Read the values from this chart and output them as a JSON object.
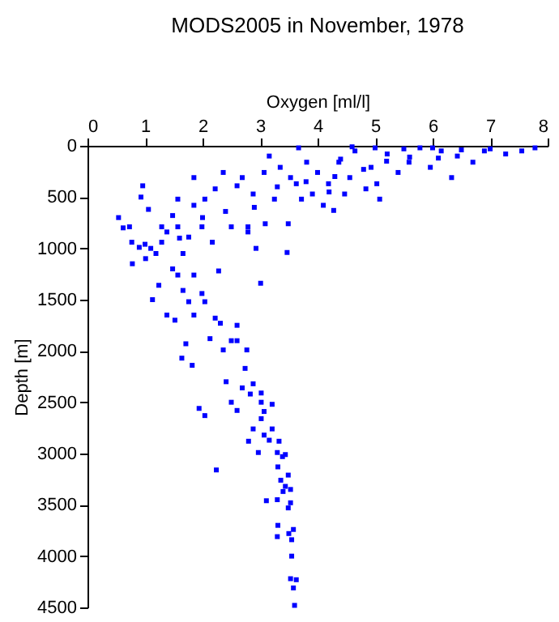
{
  "chart_data": {
    "type": "scatter",
    "title": "MODS2005 in November, 1978",
    "xlabel": "Oxygen [ml/l]",
    "ylabel": "Depth [m]",
    "xlim": [
      0,
      8
    ],
    "xticks": [
      0,
      1,
      2,
      3,
      4,
      5,
      6,
      7,
      8
    ],
    "ylim": [
      4500,
      0
    ],
    "yticks": [
      0,
      500,
      1000,
      1500,
      2000,
      2500,
      3000,
      3500,
      4000,
      4500
    ],
    "grid": false,
    "marker": "square",
    "series": [
      {
        "color": "#0000ff",
        "x": [
          7.78,
          7.55,
          7.27,
          6.9,
          6.7,
          6.43,
          6.33,
          6.15,
          5.96,
          5.78,
          5.59,
          5.4,
          5.21,
          5.03,
          5.08,
          4.93,
          4.84,
          4.65,
          4.56,
          4.47,
          4.37,
          4.28,
          4.19,
          4.1,
          4.0,
          3.91,
          3.81,
          3.72,
          3.67,
          3.63,
          3.53,
          3.49,
          3.47,
          3.35,
          3.25,
          3.16,
          3.09,
          3.07,
          3.01,
          2.93,
          2.88,
          2.79,
          2.79,
          2.69,
          2.6,
          2.5,
          2.36,
          2.28,
          2.22,
          2.17,
          2.04,
          1.99,
          1.85,
          1.85,
          1.76,
          1.66,
          1.57,
          1.48,
          1.38,
          1.29,
          1.19,
          1.24,
          1.13,
          1.01,
          0.96,
          0.93,
          0.9,
          0.78,
          0.77,
          0.73,
          0.62,
          0.54,
          1.06,
          1.29,
          1.57,
          1.48,
          1.57,
          1.66,
          1.76,
          1.85,
          1.99,
          2.04,
          1.38,
          1.52,
          1.85,
          2.22,
          2.31,
          2.6,
          2.13,
          2.5,
          2.6,
          2.77,
          1.71,
          1.64,
          1.82,
          2.74,
          2.36,
          2.41,
          2.69,
          2.88,
          3.02,
          2.83,
          3.02,
          3.21,
          2.5,
          1.94,
          2.04,
          2.6,
          3.07,
          3.02,
          2.88,
          3.21,
          3.07,
          3.16,
          2.8,
          3.33,
          2.97,
          3.3,
          3.39,
          3.44,
          2.24,
          3.31,
          3.49,
          3.36,
          3.44,
          3.53,
          3.4,
          3.11,
          3.3,
          3.53,
          3.49,
          3.31,
          3.58,
          3.5,
          3.3,
          3.55,
          3.55,
          3.53,
          3.63,
          3.58,
          3.6,
          4.6,
          5.0,
          5.5,
          6.0,
          6.5,
          7.0,
          4.4,
          5.2,
          6.1,
          4.8,
          5.6,
          4.3,
          3.8,
          4.2,
          3.3,
          2.9,
          2.4,
          2.0,
          1.6,
          1.1,
          1.0
        ],
        "values": [
          20,
          50,
          80,
          50,
          160,
          100,
          310,
          50,
          210,
          20,
          160,
          260,
          80,
          370,
          520,
          210,
          420,
          50,
          310,
          470,
          160,
          630,
          370,
          580,
          260,
          470,
          160,
          520,
          20,
          370,
          310,
          760,
          1040,
          210,
          520,
          100,
          760,
          260,
          1340,
          1000,
          470,
          790,
          840,
          310,
          390,
          790,
          260,
          1220,
          420,
          940,
          520,
          790,
          310,
          580,
          890,
          1050,
          520,
          680,
          840,
          940,
          1050,
          1360,
          1500,
          1100,
          390,
          500,
          990,
          1150,
          940,
          790,
          800,
          700,
          620,
          790,
          790,
          1200,
          1260,
          1410,
          1520,
          1260,
          1440,
          1520,
          1650,
          1700,
          1650,
          1680,
          1730,
          1750,
          1880,
          1900,
          1900,
          1990,
          1930,
          2070,
          2140,
          2170,
          1990,
          2300,
          2360,
          2320,
          2410,
          2420,
          2500,
          2520,
          2500,
          2560,
          2630,
          2580,
          2590,
          2660,
          2760,
          2760,
          2820,
          2870,
          2880,
          2880,
          2990,
          2990,
          3030,
          3010,
          3160,
          3130,
          3210,
          3260,
          3320,
          3350,
          3370,
          3460,
          3450,
          3480,
          3530,
          3700,
          3740,
          3780,
          3810,
          3840,
          4000,
          4220,
          4230,
          4310,
          4480,
          10,
          20,
          30,
          20,
          40,
          30,
          130,
          150,
          120,
          230,
          110,
          300,
          350,
          450,
          400,
          600,
          640,
          700,
          900,
          1000,
          960
        ]
      }
    ]
  }
}
